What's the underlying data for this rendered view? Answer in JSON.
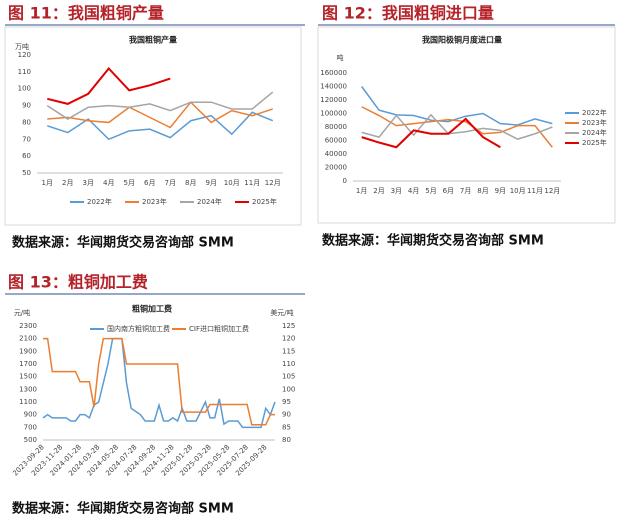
{
  "captions": [
    "图 11：我国粗铜产量",
    "图 12：我国粗铜进口量",
    "图 13：粗铜加工费"
  ],
  "sources": [
    "数据来源：华闻期货交易咨询部 SMM",
    "数据来源：华闻期货交易咨询部 SMM",
    "数据来源：华闻期货交易咨询部 SMM"
  ],
  "chart_data": [
    {
      "type": "line",
      "title": "我国粗铜产量",
      "ylabel": "万吨",
      "categories": [
        "1月",
        "2月",
        "3月",
        "4月",
        "5月",
        "6月",
        "7月",
        "8月",
        "9月",
        "10月",
        "11月",
        "12月"
      ],
      "ylim": [
        50,
        120
      ],
      "yticks": [
        50,
        60,
        70,
        80,
        90,
        100,
        110,
        120
      ],
      "grid": false,
      "legend": "bottom",
      "series": [
        {
          "name": "2022年",
          "color": "#5b9bd5",
          "values": [
            78,
            74,
            82,
            70,
            75,
            76,
            71,
            81,
            84,
            73,
            86,
            81
          ]
        },
        {
          "name": "2023年",
          "color": "#ed7d31",
          "values": [
            82,
            83,
            81,
            80,
            89,
            83,
            77,
            92,
            80,
            87,
            84,
            88
          ]
        },
        {
          "name": "2024年",
          "color": "#a5a5a5",
          "values": [
            90,
            82,
            89,
            90,
            89,
            91,
            87,
            92,
            92,
            88,
            88,
            98
          ]
        },
        {
          "name": "2025年",
          "color": "#e00000",
          "values": [
            94,
            91,
            97,
            112,
            99,
            102,
            106,
            null,
            null,
            null,
            null,
            null
          ]
        }
      ]
    },
    {
      "type": "line",
      "title": "我国阳极铜月度进口量",
      "ylabel": "吨",
      "categories": [
        "1月",
        "2月",
        "3月",
        "4月",
        "5月",
        "6月",
        "7月",
        "8月",
        "9月",
        "10月",
        "11月",
        "12月"
      ],
      "ylim": [
        0,
        160000
      ],
      "yticks": [
        0,
        20000,
        40000,
        60000,
        80000,
        100000,
        120000,
        140000,
        160000
      ],
      "grid": false,
      "legend": "right",
      "series": [
        {
          "name": "2022年",
          "color": "#5b9bd5",
          "values": [
            140000,
            105000,
            98000,
            97000,
            90000,
            88000,
            96000,
            100000,
            85000,
            83000,
            92000,
            85000
          ]
        },
        {
          "name": "2023年",
          "color": "#ed7d31",
          "values": [
            110000,
            97000,
            82000,
            85000,
            88000,
            91000,
            88000,
            70000,
            72000,
            82000,
            82000,
            50000
          ]
        },
        {
          "name": "2024年",
          "color": "#a5a5a5",
          "values": [
            72000,
            65000,
            97000,
            68000,
            98000,
            70000,
            73000,
            78000,
            75000,
            62000,
            70000,
            80000
          ]
        },
        {
          "name": "2025年",
          "color": "#e00000",
          "values": [
            65000,
            57000,
            50000,
            75000,
            70000,
            70000,
            92000,
            65000,
            50000,
            null,
            null,
            null
          ]
        }
      ]
    },
    {
      "type": "line",
      "title": "粗铜加工费",
      "ylabel": "元/吨",
      "y2label": "美元/吨",
      "categories": [
        "2023-09-28",
        null,
        null,
        null,
        "2023-11-28",
        null,
        null,
        null,
        "2024-01-28",
        null,
        null,
        null,
        "2024-03-28",
        null,
        null,
        null,
        "2024-05-28",
        null,
        null,
        null,
        "2024-07-28",
        null,
        null,
        null,
        "2024-09-28",
        null,
        null,
        null,
        "2024-11-28",
        null,
        null,
        null,
        "2025-01-28",
        null,
        null,
        null,
        "2025-03-28",
        null,
        null,
        null,
        "2025-05-28",
        null,
        null,
        null,
        "2025-07-28",
        null,
        null,
        null,
        "2025-09-28",
        null,
        null
      ],
      "ylim": [
        500,
        2300
      ],
      "yticks": [
        500,
        700,
        900,
        1100,
        1300,
        1500,
        1700,
        1900,
        2100,
        2300
      ],
      "y2lim": [
        80,
        125
      ],
      "y2ticks": [
        80,
        85,
        90,
        95,
        100,
        105,
        110,
        115,
        120,
        125
      ],
      "grid": false,
      "legend": "top",
      "series": [
        {
          "name": "国内南方粗铜加工费",
          "color": "#5b9bd5",
          "values": [
            850,
            900,
            850,
            850,
            850,
            850,
            800,
            800,
            900,
            900,
            850,
            1050,
            1100,
            1400,
            1700,
            2100,
            2100,
            2100,
            1400,
            1000,
            950,
            900,
            800,
            800,
            800,
            1050,
            800,
            800,
            850,
            800,
            1000,
            800,
            800,
            800,
            950,
            1100,
            850,
            850,
            1150,
            750,
            800,
            800,
            800,
            700,
            700,
            700,
            700,
            700,
            1000,
            900,
            1100
          ]
        },
        {
          "name": "CIF进口粗铜加工费",
          "color": "#ed7d31",
          "axis": "y2",
          "values": [
            120,
            120,
            107,
            107,
            107,
            107,
            107,
            107,
            103,
            103,
            103,
            93,
            110,
            120,
            120,
            120,
            120,
            120,
            110,
            110,
            110,
            110,
            110,
            110,
            110,
            110,
            110,
            110,
            110,
            110,
            91,
            91,
            91,
            91,
            91,
            91,
            94,
            94,
            94,
            94,
            94,
            94,
            94,
            94,
            94,
            86,
            86,
            86,
            86,
            90,
            90
          ]
        }
      ]
    }
  ]
}
